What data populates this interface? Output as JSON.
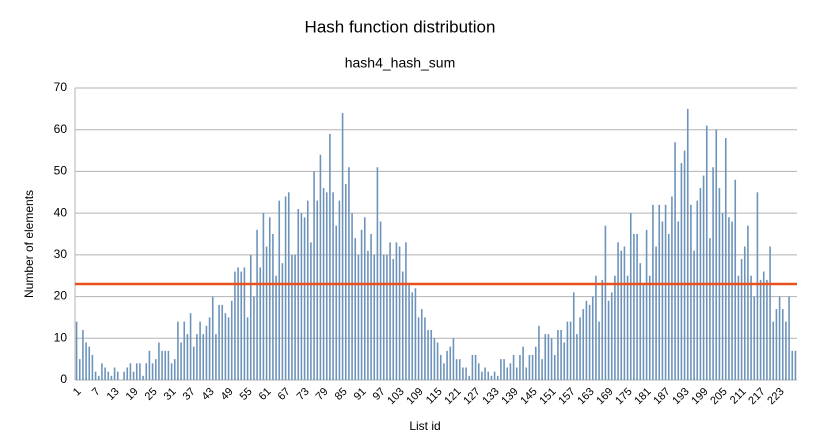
{
  "chart_data": {
    "type": "bar",
    "title": "Hash function distribution",
    "subtitle": "hash4_hash_sum",
    "x_label": "List id",
    "y_label": "Number of elements",
    "color": "#6e93bb",
    "reference_line": {
      "value": 23,
      "color": "#e8501e"
    },
    "grid": true,
    "ylim": [
      0,
      70
    ],
    "yticks": [
      0,
      10,
      20,
      30,
      40,
      50,
      60,
      70
    ],
    "categories": [
      1,
      null,
      null,
      null,
      null,
      null,
      7,
      null,
      null,
      null,
      null,
      null,
      13,
      null,
      null,
      null,
      null,
      null,
      19,
      null,
      null,
      null,
      null,
      null,
      25,
      null,
      null,
      null,
      null,
      null,
      31,
      null,
      null,
      null,
      null,
      null,
      37,
      null,
      null,
      null,
      null,
      null,
      43,
      null,
      null,
      null,
      null,
      null,
      49,
      null,
      null,
      null,
      null,
      null,
      55,
      null,
      null,
      null,
      null,
      null,
      61,
      null,
      null,
      null,
      null,
      null,
      67,
      null,
      null,
      null,
      null,
      null,
      73,
      null,
      null,
      null,
      null,
      null,
      79,
      null,
      null,
      null,
      null,
      null,
      85,
      null,
      null,
      null,
      null,
      null,
      91,
      null,
      null,
      null,
      null,
      null,
      97,
      null,
      null,
      null,
      null,
      null,
      103,
      null,
      null,
      null,
      null,
      null,
      109,
      null,
      null,
      null,
      null,
      null,
      115,
      null,
      null,
      null,
      null,
      null,
      121,
      null,
      null,
      null,
      null,
      null,
      127,
      null,
      null,
      null,
      null,
      null,
      133,
      null,
      null,
      null,
      null,
      null,
      139,
      null,
      null,
      null,
      null,
      null,
      145,
      null,
      null,
      null,
      null,
      null,
      151,
      null,
      null,
      null,
      null,
      null,
      157,
      null,
      null,
      null,
      null,
      null,
      163,
      null,
      null,
      null,
      null,
      null,
      169,
      null,
      null,
      null,
      null,
      null,
      175,
      null,
      null,
      null,
      null,
      null,
      181,
      null,
      null,
      null,
      null,
      null,
      187,
      null,
      null,
      null,
      null,
      null,
      193,
      null,
      null,
      null,
      null,
      null,
      199,
      null,
      null,
      null,
      null,
      null,
      205,
      null,
      null,
      null,
      null,
      null,
      211,
      null,
      null,
      null,
      null,
      null,
      217,
      null,
      null,
      null,
      null,
      null,
      223,
      null,
      null,
      null,
      null,
      null
    ],
    "values": [
      14,
      5,
      12,
      9,
      8,
      6,
      2,
      1,
      4,
      3,
      2,
      1,
      3,
      2,
      0,
      2,
      3,
      4,
      2,
      4,
      4,
      1,
      4,
      7,
      4,
      5,
      9,
      7,
      7,
      7,
      4,
      5,
      14,
      9,
      14,
      11,
      16,
      8,
      11,
      14,
      11,
      13,
      15,
      20,
      11,
      18,
      18,
      16,
      15,
      19,
      26,
      27,
      26,
      27,
      15,
      30,
      20,
      36,
      27,
      40,
      32,
      39,
      35,
      25,
      43,
      28,
      44,
      45,
      30,
      30,
      41,
      40,
      39,
      43,
      33,
      50,
      43,
      54,
      46,
      45,
      59,
      45,
      37,
      43,
      64,
      47,
      51,
      40,
      34,
      30,
      36,
      39,
      31,
      35,
      30,
      51,
      38,
      30,
      30,
      33,
      29,
      33,
      32,
      26,
      33,
      23,
      21,
      22,
      15,
      17,
      15,
      12,
      12,
      10,
      9,
      6,
      4,
      7,
      8,
      10,
      5,
      5,
      3,
      3,
      1,
      6,
      6,
      4,
      2,
      3,
      2,
      1,
      2,
      1,
      5,
      5,
      3,
      4,
      6,
      3,
      6,
      8,
      3,
      6,
      6,
      8,
      13,
      5,
      11,
      11,
      10,
      6,
      12,
      12,
      9,
      14,
      14,
      21,
      11,
      15,
      17,
      19,
      18,
      20,
      25,
      14,
      24,
      37,
      19,
      21,
      25,
      33,
      31,
      32,
      25,
      40,
      35,
      35,
      28,
      23,
      36,
      25,
      42,
      32,
      42,
      38,
      42,
      35,
      44,
      57,
      38,
      52,
      55,
      65,
      42,
      31,
      43,
      46,
      49,
      61,
      34,
      51,
      60,
      46,
      40,
      58,
      39,
      38,
      48,
      25,
      29,
      32,
      37,
      25,
      20,
      45,
      24,
      26,
      24,
      32,
      14,
      17,
      20,
      17,
      14,
      20,
      7,
      7
    ]
  }
}
